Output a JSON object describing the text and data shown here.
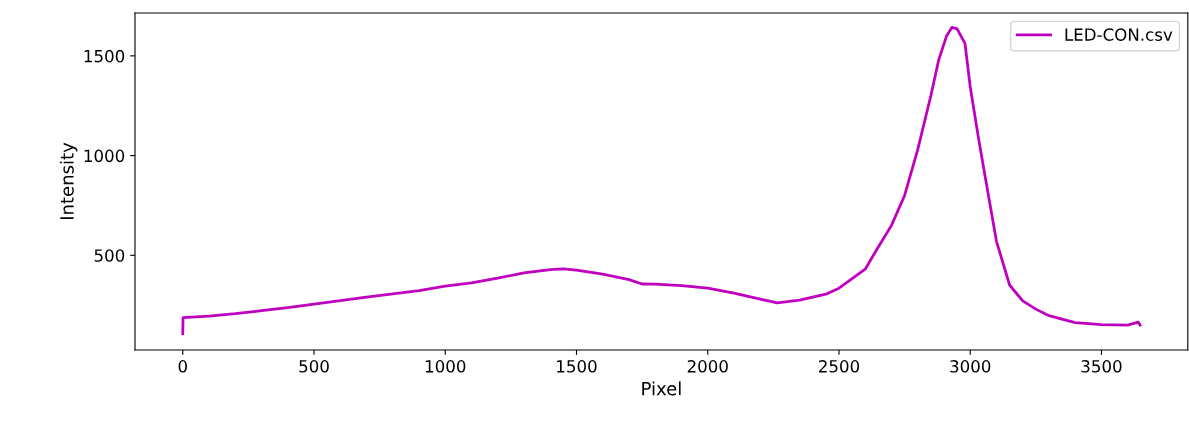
{
  "chart_data": {
    "type": "line",
    "xlabel": "Pixel",
    "ylabel": "Intensity",
    "series": [
      {
        "name": "LED-CON.csv",
        "color": "#bf00bf",
        "x": [
          0,
          1,
          100,
          200,
          300,
          400,
          500,
          600,
          700,
          800,
          900,
          1000,
          1100,
          1200,
          1300,
          1400,
          1450,
          1500,
          1600,
          1700,
          1750,
          1800,
          1900,
          2000,
          2100,
          2200,
          2265,
          2350,
          2450,
          2500,
          2600,
          2640,
          2700,
          2750,
          2800,
          2850,
          2880,
          2910,
          2930,
          2950,
          2980,
          3000,
          3030,
          3050,
          3100,
          3150,
          3200,
          3250,
          3300,
          3400,
          3500,
          3600,
          3640,
          3647
        ],
        "values": [
          107,
          187,
          195,
          207,
          222,
          238,
          255,
          272,
          290,
          307,
          323,
          345,
          362,
          385,
          412,
          428,
          432,
          425,
          405,
          378,
          356,
          355,
          348,
          335,
          310,
          280,
          261,
          275,
          305,
          335,
          430,
          520,
          650,
          800,
          1030,
          1300,
          1480,
          1600,
          1643,
          1635,
          1563,
          1345,
          1100,
          947,
          570,
          351,
          271,
          230,
          197,
          162,
          152,
          150,
          165,
          150
        ]
      }
    ],
    "xlim": [
      -182,
      3829
    ],
    "xticks": [
      0,
      500,
      1000,
      1500,
      2000,
      2500,
      3000,
      3500
    ],
    "ylim": [
      25,
      1715
    ],
    "yticks": [
      500,
      1000,
      1500
    ],
    "grid": false,
    "legend": "top right",
    "line_style": "solid",
    "marker": "none"
  }
}
